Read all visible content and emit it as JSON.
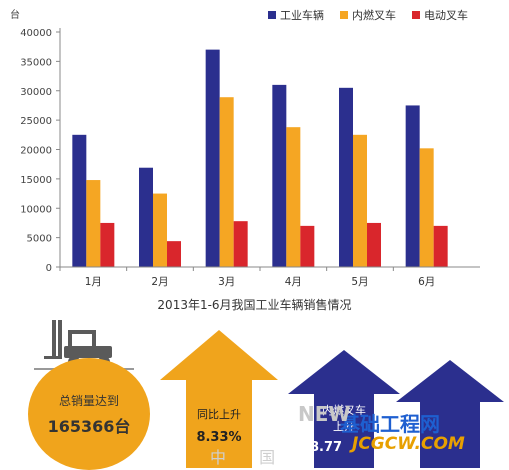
{
  "chart_data": {
    "type": "bar",
    "unit_label": "台",
    "title": "2013年1-6月我国工业车辆销售情况",
    "categories": [
      "1月",
      "2月",
      "3月",
      "4月",
      "5月",
      "6月"
    ],
    "series": [
      {
        "name": "工业车辆",
        "color": "#2b2f8e",
        "values": [
          22500,
          16900,
          37000,
          31000,
          30500,
          27500
        ]
      },
      {
        "name": "内燃叉车",
        "color": "#f5a623",
        "values": [
          14800,
          12500,
          28900,
          23800,
          22500,
          20200
        ]
      },
      {
        "name": "电动叉车",
        "color": "#d9262c",
        "values": [
          7500,
          4400,
          7800,
          7000,
          7500,
          7000
        ]
      }
    ],
    "ylim": [
      0,
      40000
    ],
    "yticks": [
      "0",
      "5000",
      "10000",
      "15000",
      "20000",
      "25000",
      "30000",
      "35000",
      "40000"
    ],
    "grid": false,
    "legend": "top-right"
  },
  "infographic": {
    "total_label": "总销量达到",
    "total_value": "165366台",
    "yoy_label": "同比上升",
    "yoy_value": "8.33%",
    "ic_label": "内燃叉车",
    "ic_sub": "上升",
    "ic_value": "8.77",
    "colors": {
      "orange": "#f0a41c",
      "navy": "#2b2f8e",
      "gray": "#b5b5b5"
    }
  },
  "watermark": {
    "text1": "基础工程网",
    "text2": "JCGCW.COM",
    "text3": "NEW",
    "text4": "中 国"
  }
}
